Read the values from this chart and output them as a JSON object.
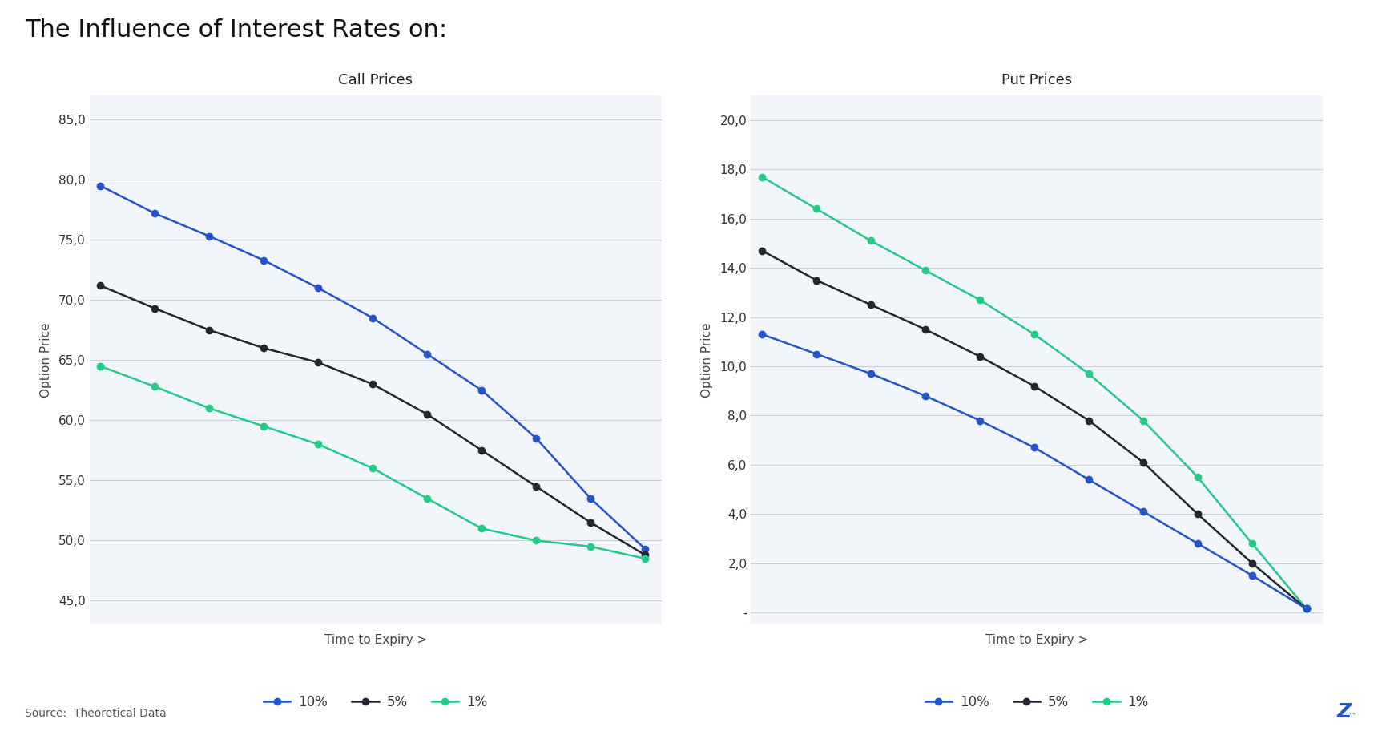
{
  "title": "The Influence of Interest Rates on:",
  "background_color": "#ffffff",
  "panel_background": "#f2f5f9",
  "call_title": "Call Prices",
  "put_title": "Put Prices",
  "xlabel": "Time to Expiry >",
  "ylabel": "Option Price",
  "x_points": [
    0,
    1,
    2,
    3,
    4,
    5,
    6,
    7,
    8,
    9,
    10
  ],
  "call_10pct": [
    79.5,
    77.2,
    75.3,
    73.3,
    71.0,
    68.5,
    65.5,
    62.5,
    58.5,
    53.5,
    49.3
  ],
  "call_5pct": [
    71.2,
    69.3,
    67.5,
    66.0,
    64.8,
    63.0,
    60.5,
    57.5,
    54.5,
    51.5,
    48.8
  ],
  "call_1pct": [
    64.5,
    62.8,
    61.0,
    59.5,
    58.0,
    56.0,
    53.5,
    51.0,
    50.0,
    49.5,
    48.5
  ],
  "put_1pct": [
    17.7,
    16.4,
    15.1,
    13.9,
    12.7,
    11.3,
    9.7,
    7.8,
    5.5,
    2.8,
    0.15
  ],
  "put_5pct": [
    14.7,
    13.5,
    12.5,
    11.5,
    10.4,
    9.2,
    7.8,
    6.1,
    4.0,
    2.0,
    0.15
  ],
  "put_10pct": [
    11.3,
    10.5,
    9.7,
    8.8,
    7.8,
    6.7,
    5.4,
    4.1,
    2.8,
    1.5,
    0.15
  ],
  "call_yticks": [
    45.0,
    50.0,
    55.0,
    60.0,
    65.0,
    70.0,
    75.0,
    80.0,
    85.0
  ],
  "put_yticks": [
    0.0,
    2.0,
    4.0,
    6.0,
    8.0,
    10.0,
    12.0,
    14.0,
    16.0,
    18.0,
    20.0
  ],
  "color_blue": "#2255cc",
  "color_black": "#252530",
  "color_green": "#22cc88",
  "source_text": "Source:  Theoretical Data",
  "watermark_color": "#2255cc",
  "title_fontsize": 22,
  "axis_label_fontsize": 11,
  "tick_fontsize": 11,
  "subtitle_fontsize": 13
}
